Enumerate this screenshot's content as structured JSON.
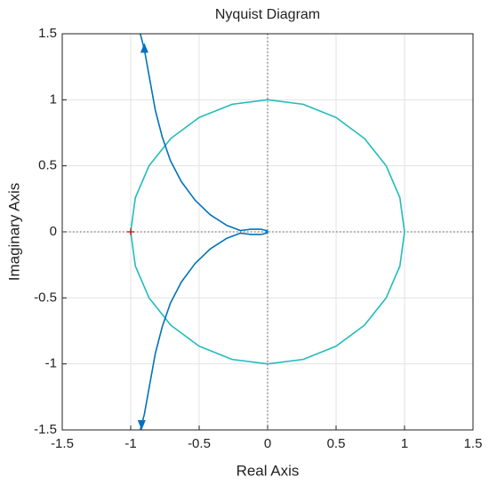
{
  "chart_data": {
    "type": "nyquist",
    "title": "Nyquist Diagram",
    "x_label": "Real Axis",
    "y_label": "Imaginary Axis",
    "xlim": [
      -1.5,
      1.5
    ],
    "ylim": [
      -1.5,
      1.5
    ],
    "xticks": [
      -1.5,
      -1,
      -0.5,
      0,
      0.5,
      1,
      1.5
    ],
    "yticks": [
      -1.5,
      -1,
      -0.5,
      0,
      0.5,
      1,
      1.5
    ],
    "grid": true,
    "series": [
      {
        "color": "#0072bd",
        "x": [
          -0.93,
          -0.9,
          -0.86,
          -0.82,
          -0.77,
          -0.71,
          -0.63,
          -0.53,
          -0.42,
          -0.3,
          -0.2,
          -0.12,
          -0.05,
          -0.01,
          0,
          -0.01,
          -0.05,
          -0.12,
          -0.2,
          -0.3,
          -0.42,
          -0.53,
          -0.63,
          -0.71,
          -0.77,
          -0.82,
          -0.86,
          -0.9,
          -0.93
        ],
        "y": [
          1.5,
          1.38,
          1.15,
          0.92,
          0.72,
          0.54,
          0.38,
          0.24,
          0.13,
          0.05,
          0.01,
          0.02,
          0.02,
          0.01,
          0,
          -0.01,
          -0.02,
          -0.02,
          -0.01,
          -0.05,
          -0.13,
          -0.24,
          -0.38,
          -0.54,
          -0.72,
          -0.92,
          -1.15,
          -1.38,
          -1.5
        ]
      },
      {
        "color": "#22bcbc",
        "x": [
          1,
          0.966,
          0.866,
          0.707,
          0.5,
          0.259,
          0,
          -0.259,
          -0.5,
          -0.707,
          -0.866,
          -0.966,
          -1,
          -0.966,
          -0.866,
          -0.707,
          -0.5,
          -0.259,
          0,
          0.259,
          0.5,
          0.707,
          0.866,
          0.966,
          1
        ],
        "y": [
          0,
          0.259,
          0.5,
          0.707,
          0.866,
          0.966,
          1,
          0.966,
          0.866,
          0.707,
          0.5,
          0.259,
          0,
          -0.259,
          -0.5,
          -0.707,
          -0.866,
          -0.966,
          -1,
          -0.966,
          -0.866,
          -0.707,
          -0.5,
          -0.259,
          0
        ]
      }
    ],
    "arrows": {
      "color": "#0072bd",
      "x": [
        -0.9,
        -0.92
      ],
      "y": [
        1.39,
        -1.46
      ]
    },
    "critical_point": {
      "color": "#d00000",
      "x": -1,
      "y": 0
    }
  }
}
